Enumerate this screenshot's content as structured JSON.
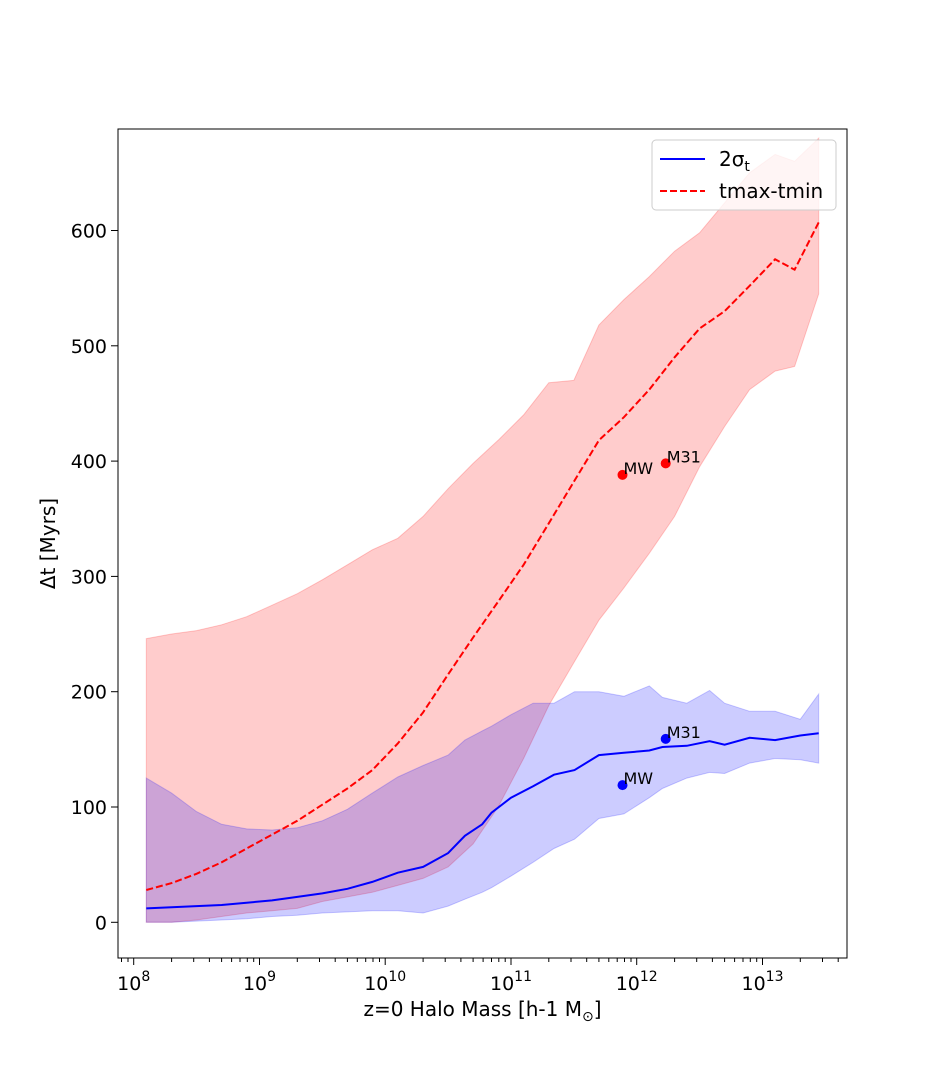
{
  "chart_data": {
    "type": "line",
    "title": "",
    "xlabel": "z=0 Halo Mass [h-1 M",
    "xlabel_sub": "⊙",
    "xlabel_close": "]",
    "ylabel": "Δt [Myrs]",
    "xscale": "log",
    "xlim": [
      75000000.0,
      47000000000000.0
    ],
    "ylim": [
      -31,
      688
    ],
    "x_tick_labels": [
      {
        "value": 100000000.0,
        "base": "10",
        "exp": "8"
      },
      {
        "value": 1000000000.0,
        "base": "10",
        "exp": "9"
      },
      {
        "value": 10000000000.0,
        "base": "10",
        "exp": "10"
      },
      {
        "value": 100000000000.0,
        "base": "10",
        "exp": "11"
      },
      {
        "value": 1000000000000.0,
        "base": "10",
        "exp": "12"
      },
      {
        "value": 10000000000000.0,
        "base": "10",
        "exp": "13"
      }
    ],
    "y_ticks": [
      0,
      100,
      200,
      300,
      400,
      500,
      600
    ],
    "y_tick_labels": [
      "0",
      "100",
      "200",
      "300",
      "400",
      "500",
      "600"
    ],
    "grid": false,
    "legend_position": "upper right",
    "legend_entries": [
      {
        "label": "2σ",
        "label_sub": "t",
        "color": "#0000ff",
        "style": "solid"
      },
      {
        "label": "tmax-tmin",
        "color": "#ff0000",
        "style": "dashed"
      }
    ],
    "series": [
      {
        "name": "2σt",
        "color": "#0000ff",
        "style": "solid",
        "x": [
          126000000.0,
          200000000.0,
          316000000.0,
          500000000.0,
          790000000.0,
          1260000000.0,
          2000000000.0,
          3160000000.0,
          5000000000.0,
          7900000000.0,
          12600000000.0,
          20000000000.0,
          31600000000.0,
          43000000000.0,
          59000000000.0,
          70000000000.0,
          100000000000.0,
          150000000000.0,
          220000000000.0,
          320000000000.0,
          500000000000.0,
          790000000000.0,
          1260000000000.0,
          1600000000000.0,
          2500000000000.0,
          3800000000000.0,
          5000000000000.0,
          7900000000000.0,
          12600000000000.0,
          20000000000000.0,
          28000000000000.0
        ],
        "values": [
          12,
          13,
          14,
          15,
          17,
          19,
          22,
          25,
          29,
          35,
          43,
          48,
          60,
          75,
          85,
          95,
          108,
          118,
          128,
          132,
          145,
          147,
          149,
          152,
          153,
          157,
          154,
          160,
          158,
          162,
          164
        ],
        "band_upper": [
          125,
          112,
          96,
          85,
          81,
          80,
          82,
          88,
          98,
          112,
          126,
          136,
          145,
          158,
          166,
          170,
          180,
          190,
          190,
          200,
          200,
          196,
          205,
          195,
          190,
          201,
          190,
          183,
          183,
          176,
          198
        ],
        "band_lower": [
          0,
          0,
          1,
          2,
          3,
          5,
          6,
          8,
          9,
          10,
          10,
          8,
          14,
          20,
          26,
          30,
          40,
          52,
          64,
          72,
          90,
          94,
          108,
          116,
          125,
          130,
          129,
          138,
          142,
          141,
          138
        ]
      },
      {
        "name": "tmax-tmin",
        "color": "#ff0000",
        "style": "dashed",
        "x": [
          126000000.0,
          200000000.0,
          316000000.0,
          500000000.0,
          790000000.0,
          1260000000.0,
          2000000000.0,
          3160000000.0,
          5000000000.0,
          7900000000.0,
          12600000000.0,
          20000000000.0,
          31600000000.0,
          50000000000.0,
          79000000000.0,
          126000000000.0,
          200000000000.0,
          316000000000.0,
          500000000000.0,
          790000000000.0,
          1260000000000.0,
          2000000000000.0,
          3160000000000.0,
          5000000000000.0,
          7900000000000.0,
          12600000000000.0,
          18000000000000.0,
          28000000000000.0
        ],
        "values": [
          28,
          34,
          42,
          52,
          64,
          76,
          88,
          102,
          116,
          132,
          155,
          182,
          215,
          247,
          278,
          310,
          346,
          382,
          418,
          438,
          462,
          490,
          515,
          530,
          552,
          575,
          566,
          607
        ],
        "band_upper": [
          246,
          250,
          253,
          258,
          265,
          275,
          285,
          297,
          310,
          323,
          333,
          352,
          376,
          398,
          418,
          440,
          468,
          470,
          518,
          540,
          560,
          582,
          598,
          624,
          650,
          666,
          660,
          680
        ],
        "band_lower": [
          0,
          0,
          2,
          5,
          8,
          10,
          12,
          18,
          22,
          26,
          32,
          38,
          48,
          68,
          100,
          142,
          188,
          225,
          262,
          290,
          320,
          352,
          395,
          430,
          462,
          478,
          482,
          545
        ]
      }
    ],
    "points": [
      {
        "series": "tmax-tmin",
        "label": "MW",
        "x": 770000000000.0,
        "y": 388,
        "color": "#ff0000"
      },
      {
        "series": "tmax-tmin",
        "label": "M31",
        "x": 1700000000000.0,
        "y": 398,
        "color": "#ff0000"
      },
      {
        "series": "2σt",
        "label": "MW",
        "x": 770000000000.0,
        "y": 119,
        "color": "#0000ff"
      },
      {
        "series": "2σt",
        "label": "M31",
        "x": 1700000000000.0,
        "y": 159,
        "color": "#0000ff"
      }
    ]
  }
}
